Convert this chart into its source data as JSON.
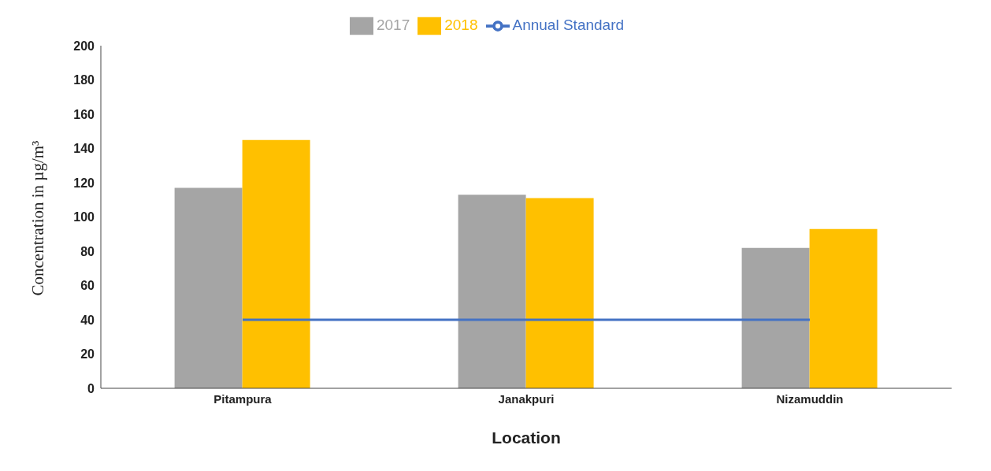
{
  "chart_data": {
    "type": "bar",
    "xlabel": "Location",
    "ylabel": "Concentration in µg/m³",
    "categories": [
      "Pitampura",
      "Janakpuri",
      "Nizamuddin"
    ],
    "series": [
      {
        "name": "2017",
        "color": "#a5a5a5",
        "values": [
          117,
          113,
          82
        ]
      },
      {
        "name": "2018",
        "color": "#ffc000",
        "values": [
          145,
          111,
          93
        ]
      },
      {
        "name": "Annual Standard",
        "type": "line",
        "color": "#4472c4",
        "values": [
          40,
          40,
          40
        ]
      }
    ],
    "ylim": [
      0,
      200
    ],
    "yticks": [
      0,
      20,
      40,
      60,
      80,
      100,
      120,
      140,
      160,
      180,
      200
    ],
    "grid": false,
    "legend": "top",
    "marker": "none"
  }
}
